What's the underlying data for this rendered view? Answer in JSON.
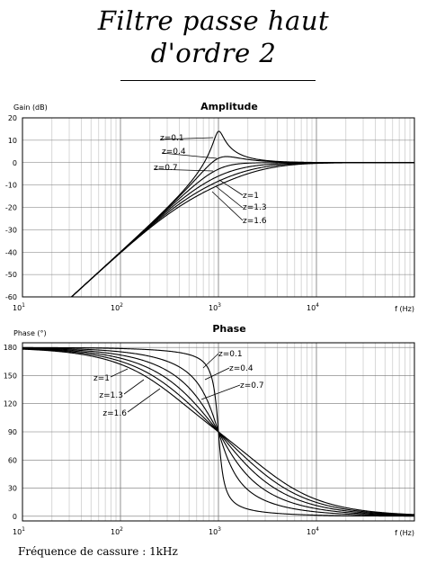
{
  "header": {
    "title_line1": "Filtre passe haut",
    "title_line2": "d'ordre 2"
  },
  "footer": "Fréquence de cassure : 1kHz",
  "chart_data": [
    {
      "type": "line",
      "title": "Amplitude",
      "ylabel": "Gain (dB)",
      "xlabel": "f (Hz)",
      "xscale": "log",
      "xlim": [
        10,
        100000
      ],
      "ylim": [
        -60,
        20
      ],
      "yticks": [
        20,
        10,
        0,
        -10,
        -20,
        -30,
        -40,
        -50,
        -60
      ],
      "xticks": [
        {
          "base": "10",
          "exp": "1"
        },
        {
          "base": "10",
          "exp": "2"
        },
        {
          "base": "10",
          "exp": "3"
        },
        {
          "base": "10",
          "exp": "4"
        }
      ],
      "cutoff_hz": 1000,
      "grid": true,
      "series": [
        {
          "name": "z=0.1",
          "z": 0.1
        },
        {
          "name": "z=0.4",
          "z": 0.4
        },
        {
          "name": "z=0.7",
          "z": 0.7
        },
        {
          "name": "z=1",
          "z": 1
        },
        {
          "name": "z=1.3",
          "z": 1.3
        },
        {
          "name": "z=1.6",
          "z": 1.6
        }
      ]
    },
    {
      "type": "line",
      "title": "Phase",
      "ylabel": "Phase (°)",
      "xlabel": "f (Hz)",
      "xscale": "log",
      "xlim": [
        10,
        100000
      ],
      "ylim": [
        -5,
        185
      ],
      "yticks": [
        180,
        150,
        120,
        90,
        60,
        30,
        0
      ],
      "xticks": [
        {
          "base": "10",
          "exp": "1"
        },
        {
          "base": "10",
          "exp": "2"
        },
        {
          "base": "10",
          "exp": "3"
        },
        {
          "base": "10",
          "exp": "4"
        }
      ],
      "cutoff_hz": 1000,
      "grid": true,
      "series": [
        {
          "name": "z=0.1",
          "z": 0.1
        },
        {
          "name": "z=0.4",
          "z": 0.4
        },
        {
          "name": "z=0.7",
          "z": 0.7
        },
        {
          "name": "z=1",
          "z": 1
        },
        {
          "name": "z=1.3",
          "z": 1.3
        },
        {
          "name": "z=1.6",
          "z": 1.6
        }
      ]
    }
  ]
}
